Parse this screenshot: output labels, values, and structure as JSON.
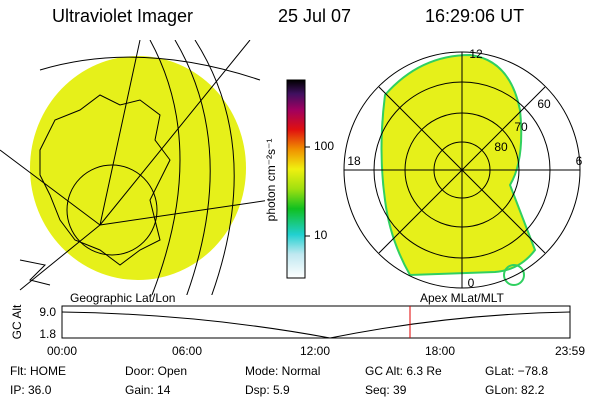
{
  "header": {
    "title": "Ultraviolet Imager",
    "date": "25 Jul 07",
    "time": "16:29:06 UT"
  },
  "colorbar": {
    "label": "photon cm⁻²s⁻¹",
    "ticks": [
      "100",
      "10"
    ]
  },
  "polar": {
    "labels": [
      "12",
      "18",
      "6",
      "0",
      "60",
      "70",
      "80"
    ]
  },
  "panels": {
    "left": "Geographic Lat/Lon",
    "right": "Apex MLat/MLT"
  },
  "alt_plot": {
    "label": "GC Alt",
    "yticks": [
      "9.0",
      "1.8"
    ],
    "xticks": [
      "00:00",
      "06:00",
      "12:00",
      "18:00",
      "23:59"
    ]
  },
  "info": [
    [
      "Flt: HOME",
      "Door: Open",
      "Mode: Normal",
      "GC Alt: 6.3 Re",
      "GLat: −78.8"
    ],
    [
      "IP: 36.0",
      "Gain: 14",
      "Dsp: 5.9",
      "Seq: 39",
      "GLon: 82.2"
    ]
  ]
}
